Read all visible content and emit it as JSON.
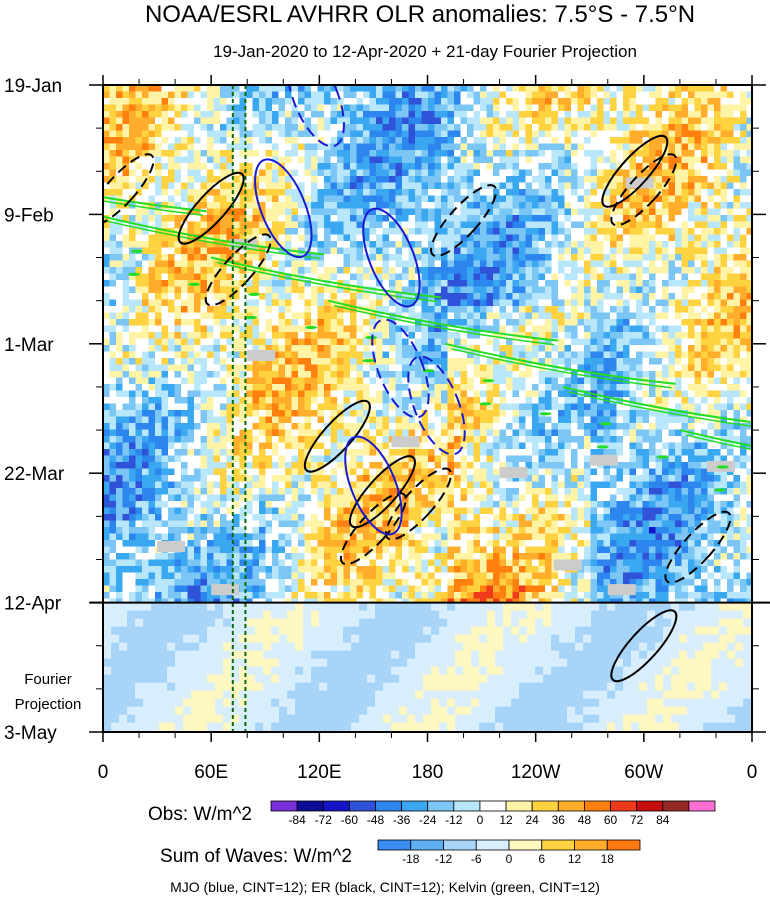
{
  "chart_data": {
    "type": "heatmap",
    "title": "NOAA/ESRL AVHRR OLR anomalies: 7.5°S - 7.5°N",
    "subtitle": "19-Jan-2020 to 12-Apr-2020 + 21-day Fourier Projection",
    "x_ticks": [
      "0",
      "60E",
      "120E",
      "180",
      "120W",
      "60W",
      "0"
    ],
    "x_tick_lon": [
      0,
      60,
      120,
      180,
      240,
      300,
      360
    ],
    "y_ticks": [
      "19-Jan",
      "9-Feb",
      "1-Mar",
      "22-Mar",
      "12-Apr",
      "3-May"
    ],
    "y_tick_day": [
      0,
      21,
      42,
      63,
      84,
      105
    ],
    "xlim": [
      0,
      360
    ],
    "ylim_days": [
      0,
      105
    ],
    "projection_start_day": 84,
    "projection_label": [
      "Fourier",
      "Projection"
    ],
    "reference_lines_lon": [
      72,
      79
    ],
    "obs_colorbar": {
      "label": "Obs: W/m^2",
      "levels": [
        "-84",
        "-72",
        "-60",
        "-48",
        "-36",
        "-24",
        "-12",
        "0",
        "12",
        "24",
        "36",
        "48",
        "60",
        "72",
        "84"
      ],
      "colors": [
        "#7b2fd8",
        "#0c0c96",
        "#1414c8",
        "#2f52d8",
        "#2d86ee",
        "#3aa8f0",
        "#7cc6f6",
        "#b8e6fb",
        "#ffffff",
        "#fff4a6",
        "#ffd23f",
        "#ffad2a",
        "#ff7f0f",
        "#ef3b1a",
        "#c80e0e",
        "#962828",
        "#ff6ed2"
      ]
    },
    "waves_colorbar": {
      "label": "Sum of Waves: W/m^2",
      "levels": [
        "-18",
        "-12",
        "-6",
        "0",
        "6",
        "12",
        "18"
      ],
      "colors": [
        "#3a8cf0",
        "#5fb0f3",
        "#a8d4f8",
        "#d8eefc",
        "#fff7c0",
        "#ffd23f",
        "#ffad2a",
        "#ff7a0f"
      ]
    },
    "footer": "MJO (blue, CINT=12); ER (black, CINT=12); Kelvin (green, CINT=12)",
    "wave_colors": {
      "MJO": "#1a1ad0",
      "ER": "#000000",
      "Kelvin": "#22dd22"
    }
  }
}
